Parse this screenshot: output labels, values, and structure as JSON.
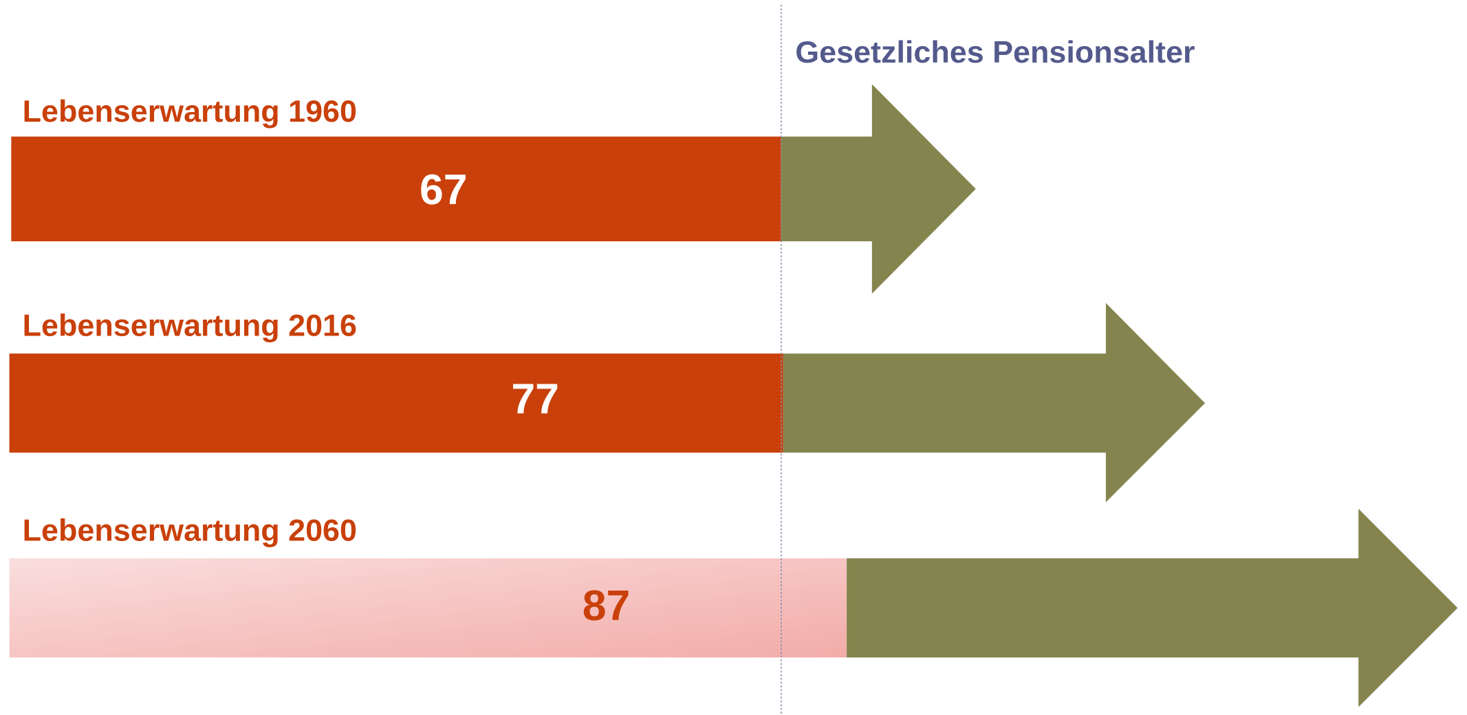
{
  "title": "Gesetzliches Pensionsalter",
  "rows": [
    {
      "label": "Lebenserwartung 1960",
      "value": 67
    },
    {
      "label": "Lebenserwartung 2016",
      "value": 77
    },
    {
      "label": "Lebenserwartung 2060",
      "value": 87
    }
  ]
}
